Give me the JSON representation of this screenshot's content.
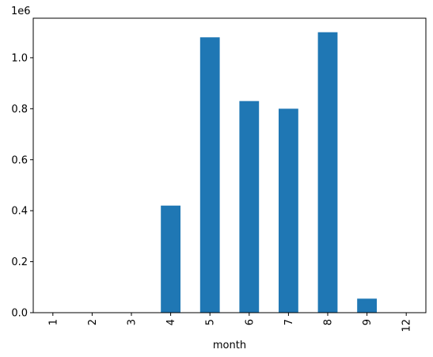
{
  "chart_data": {
    "type": "bar",
    "categories": [
      "1",
      "2",
      "3",
      "4",
      "5",
      "6",
      "7",
      "8",
      "9",
      "12"
    ],
    "values": [
      0,
      0,
      0,
      420000,
      1080000,
      830000,
      800000,
      1100000,
      55000,
      0
    ],
    "xlabel": "month",
    "ylabel": "",
    "ylim": [
      0,
      1155000
    ],
    "yticks": [
      0,
      200000,
      400000,
      600000,
      800000,
      1000000
    ],
    "ytick_labels": [
      "0.0",
      "0.2",
      "0.4",
      "0.6",
      "0.8",
      "1.0"
    ],
    "offset_label": "1e6",
    "x_tick_rotation": "vertical",
    "grid": false,
    "legend": "none",
    "colors": {
      "bar": "#1f77b4",
      "axis": "#000000",
      "background": "#ffffff"
    }
  }
}
